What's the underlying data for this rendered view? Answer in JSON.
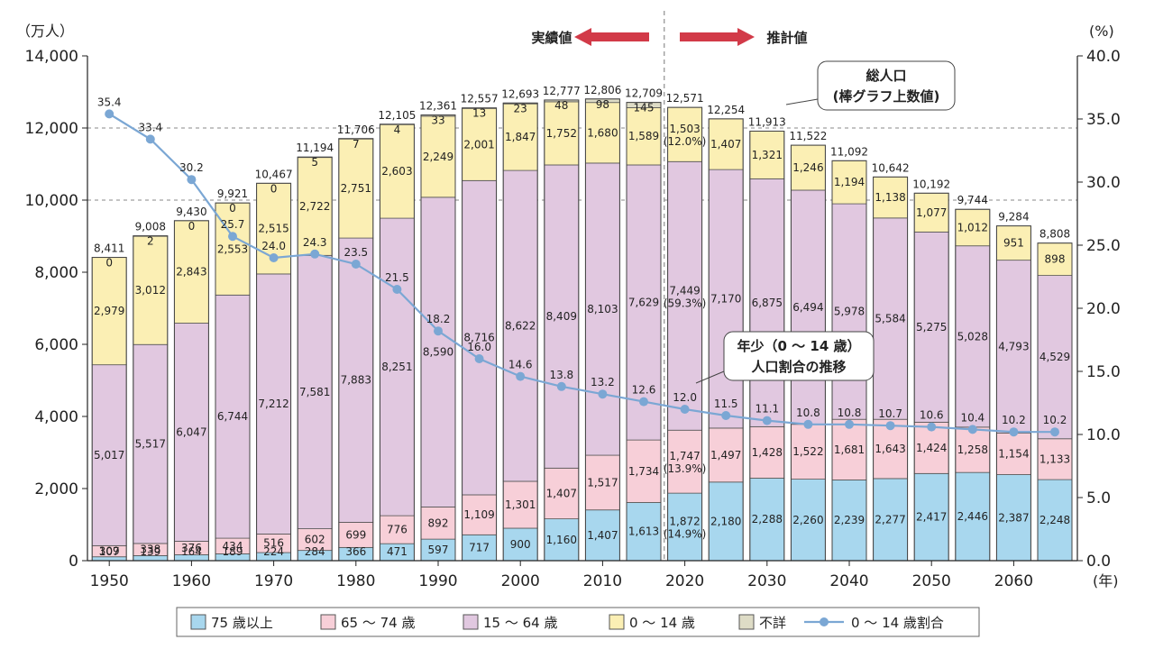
{
  "chart_data": {
    "type": "bar",
    "stacked": true,
    "y_left_unit": "（万人）",
    "y_right_unit": "(%)",
    "x_unit": "(年)",
    "y_left_ticks": [
      "0",
      "2,000",
      "4,000",
      "6,000",
      "8,000",
      "10,000",
      "12,000",
      "14,000"
    ],
    "y_right_ticks": [
      "0.0",
      "5.0",
      "10.0",
      "15.0",
      "20.0",
      "25.0",
      "30.0",
      "35.0",
      "40.0"
    ],
    "ylim_left": [
      0,
      14000
    ],
    "ylim_right": [
      0,
      40
    ],
    "x_tick_labels": [
      "1950",
      "1960",
      "1970",
      "1980",
      "1990",
      "2000",
      "2010",
      "2020",
      "2030",
      "2040",
      "2050",
      "2060"
    ],
    "categories": [
      "1950",
      "1955",
      "1960",
      "1965",
      "1970",
      "1975",
      "1980",
      "1985",
      "1990",
      "1995",
      "2000",
      "2005",
      "2010",
      "2015",
      "2020",
      "2025",
      "2030",
      "2035",
      "2040",
      "2045",
      "2050",
      "2055",
      "2060",
      "2065"
    ],
    "series": [
      {
        "name": "75 歳以上",
        "color": "#a8d7ee",
        "values": [
          107,
          139,
          164,
          189,
          224,
          284,
          366,
          471,
          597,
          717,
          900,
          1160,
          1407,
          1613,
          1872,
          2180,
          2288,
          2260,
          2239,
          2277,
          2417,
          2446,
          2387,
          2248
        ],
        "labels": [
          "107",
          "139",
          "164",
          "189",
          "224",
          "284",
          "366",
          "471",
          "597",
          "717",
          "900",
          "1,160",
          "1,407",
          "1,613",
          "1,872\n(14.9%)",
          "2,180",
          "2,288",
          "2,260",
          "2,239",
          "2,277",
          "2,417",
          "2,446",
          "2,387",
          "2,248"
        ]
      },
      {
        "name": "65 ～ 74 歳",
        "color": "#f7cfd8",
        "values": [
          309,
          338,
          376,
          434,
          516,
          602,
          699,
          776,
          892,
          1109,
          1301,
          1407,
          1517,
          1734,
          1747,
          1497,
          1428,
          1522,
          1681,
          1643,
          1424,
          1258,
          1154,
          1133
        ],
        "labels": [
          "309",
          "338",
          "376",
          "434",
          "516",
          "602",
          "699",
          "776",
          "892",
          "1,109",
          "1,301",
          "1,407",
          "1,517",
          "1,734",
          "1,747\n(13.9%)",
          "1,497",
          "1,428",
          "1,522",
          "1,681",
          "1,643",
          "1,424",
          "1,258",
          "1,154",
          "1,133"
        ]
      },
      {
        "name": "15 ～ 64 歳",
        "color": "#e1c8e0",
        "values": [
          5017,
          5517,
          6047,
          6744,
          7212,
          7581,
          7883,
          8251,
          8590,
          8716,
          8622,
          8409,
          8103,
          7629,
          7449,
          7170,
          6875,
          6494,
          5978,
          5584,
          5275,
          5028,
          4793,
          4529
        ],
        "labels": [
          "5,017",
          "5,517",
          "6,047",
          "6,744",
          "7,212",
          "7,581",
          "7,883",
          "8,251",
          "8,590",
          "8,716",
          "8,622",
          "8,409",
          "8,103",
          "7,629",
          "7,449\n(59.3%)",
          "7,170",
          "6,875",
          "6,494",
          "5,978",
          "5,584",
          "5,275",
          "5,028",
          "4,793",
          "4,529"
        ]
      },
      {
        "name": "0 ～ 14 歳",
        "color": "#fbefb4",
        "values": [
          2979,
          3012,
          2843,
          2553,
          2515,
          2722,
          2751,
          2603,
          2249,
          2001,
          1847,
          1752,
          1680,
          1589,
          1503,
          1407,
          1321,
          1246,
          1194,
          1138,
          1077,
          1012,
          951,
          898
        ],
        "labels": [
          "2,979",
          "3,012",
          "2,843",
          "2,553",
          "2,515",
          "2,722",
          "2,751",
          "2,603",
          "2,249",
          "2,001",
          "1,847",
          "1,752",
          "1,680",
          "1,589",
          "1,503\n(12.0%)",
          "1,407",
          "1,321",
          "1,246",
          "1,194",
          "1,138",
          "1,077",
          "1,012",
          "951",
          "898"
        ]
      },
      {
        "name": "不詳",
        "color": "#dedcc6",
        "values": [
          0,
          2,
          0,
          0,
          0,
          5,
          7,
          4,
          33,
          13,
          23,
          48,
          98,
          145,
          0,
          0,
          0,
          0,
          0,
          0,
          0,
          0,
          0,
          0
        ],
        "labels": [
          "0",
          "2",
          "0",
          "0",
          "0",
          "5",
          "7",
          "4",
          "33",
          "13",
          "23",
          "48",
          "98",
          "145",
          "",
          "",
          "",
          "",
          "",
          "",
          "",
          "",
          "",
          ""
        ]
      }
    ],
    "totals": [
      8411,
      9008,
      9430,
      9921,
      10467,
      11194,
      11706,
      12105,
      12361,
      12557,
      12693,
      12777,
      12806,
      12709,
      12571,
      12254,
      11913,
      11522,
      11092,
      10642,
      10192,
      9744,
      9284,
      8808
    ],
    "total_labels": [
      "8,411",
      "9,008",
      "9,430",
      "9,921",
      "10,467",
      "11,194",
      "11,706",
      "12,105",
      "12,361",
      "12,557",
      "12,693",
      "12,777",
      "12,806",
      "12,709",
      "12,571",
      "12,254",
      "11,913",
      "11,522",
      "11,092",
      "10,642",
      "10,192",
      "9,744",
      "9,284",
      "8,808"
    ],
    "ratio_line": {
      "name": "0 ～ 14 歳割合",
      "color": "#7ba7d4",
      "values": [
        35.4,
        33.4,
        30.2,
        25.7,
        24.0,
        24.3,
        23.5,
        21.5,
        18.2,
        16.0,
        14.6,
        13.8,
        13.2,
        12.6,
        12.0,
        11.5,
        11.1,
        10.8,
        10.8,
        10.7,
        10.6,
        10.4,
        10.2,
        10.2
      ],
      "labels": [
        "35.4",
        "33.4",
        "30.2",
        "25.7",
        "24.0",
        "24.3",
        "23.5",
        "21.5",
        "18.2",
        "16.0",
        "14.6",
        "13.8",
        "13.2",
        "12.6",
        "12.0",
        "11.5",
        "11.1",
        "10.8",
        "10.8",
        "10.7",
        "10.6",
        "10.4",
        "10.2",
        "10.2"
      ]
    },
    "actual_label": "実績値",
    "projected_label": "推計値",
    "arrow_color": "#d23a48",
    "callout_total": [
      "総人口",
      "(棒グラフ上数値)"
    ],
    "callout_ratio": [
      "年少（0 ～ 14 歳）",
      "人口割合の推移"
    ],
    "legend_position": "bottom"
  }
}
